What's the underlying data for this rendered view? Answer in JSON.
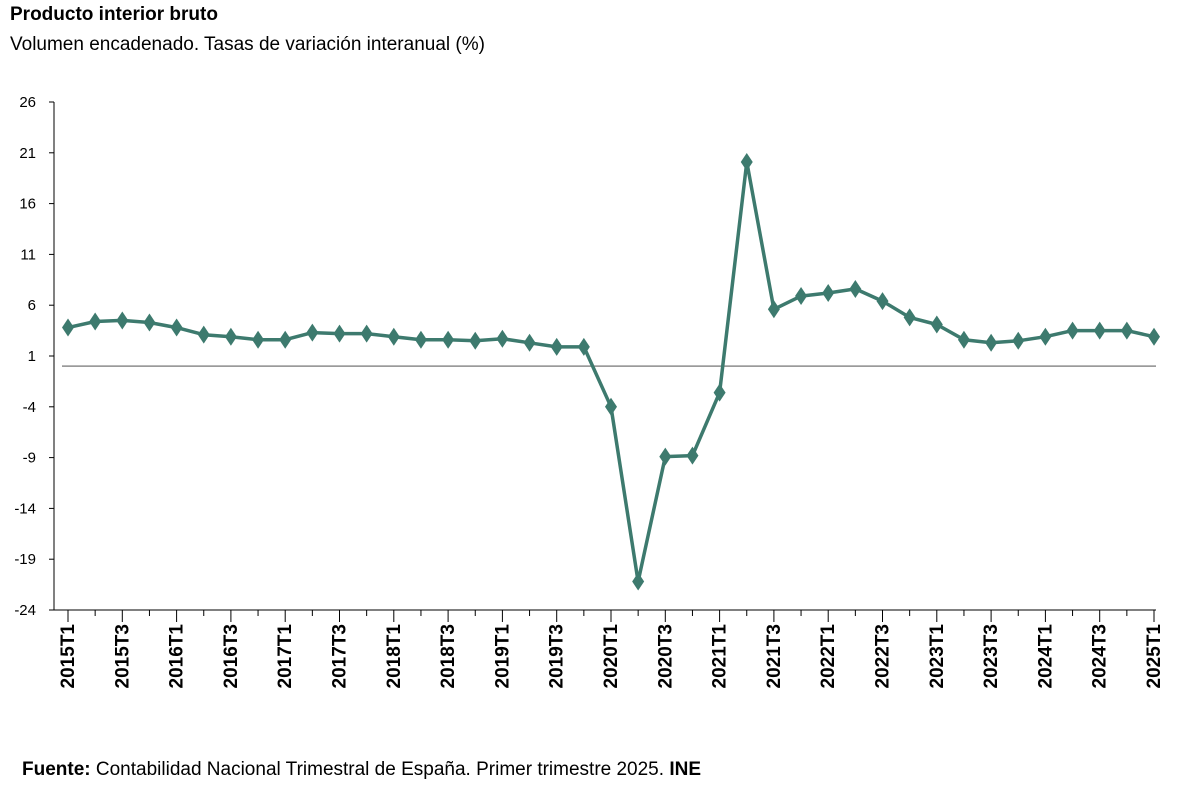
{
  "chart_data": {
    "type": "line",
    "title": "Producto interior bruto",
    "subtitle": "Volumen encadenado. Tasas de variación interanual (%)",
    "xlabel": "",
    "ylabel": "",
    "ylim": [
      -24,
      26
    ],
    "yticks": [
      26,
      21,
      16,
      11,
      6,
      1,
      -4,
      -9,
      -14,
      -19,
      -24
    ],
    "reference_line": 0,
    "x": [
      "2015T1",
      "2015T2",
      "2015T3",
      "2015T4",
      "2016T1",
      "2016T2",
      "2016T3",
      "2016T4",
      "2017T1",
      "2017T2",
      "2017T3",
      "2017T4",
      "2018T1",
      "2018T2",
      "2018T3",
      "2018T4",
      "2019T1",
      "2019T2",
      "2019T3",
      "2019T4",
      "2020T1",
      "2020T2",
      "2020T3",
      "2020T4",
      "2021T1",
      "2021T2",
      "2021T3",
      "2021T4",
      "2022T1",
      "2022T2",
      "2022T3",
      "2022T4",
      "2023T1",
      "2023T2",
      "2023T3",
      "2023T4",
      "2024T1",
      "2024T2",
      "2024T3",
      "2024T4",
      "2025T1"
    ],
    "xtick_labels": [
      "2015T1",
      "2015T3",
      "2016T1",
      "2016T3",
      "2017T1",
      "2017T3",
      "2018T1",
      "2018T3",
      "2019T1",
      "2019T3",
      "2020T1",
      "2020T3",
      "2021T1",
      "2021T3",
      "2022T1",
      "2022T3",
      "2023T1",
      "2023T3",
      "2024T1",
      "2024T3",
      "2025T1"
    ],
    "series": [
      {
        "name": "PIB",
        "color": "#3d7a6e",
        "values": [
          3.8,
          4.4,
          4.5,
          4.3,
          3.8,
          3.1,
          2.9,
          2.6,
          2.6,
          3.3,
          3.2,
          3.2,
          2.9,
          2.6,
          2.6,
          2.5,
          2.7,
          2.3,
          1.9,
          1.9,
          -4.0,
          -21.2,
          -8.9,
          -8.8,
          -2.6,
          20.1,
          5.6,
          6.9,
          7.2,
          7.6,
          6.4,
          4.8,
          4.1,
          2.6,
          2.3,
          2.5,
          2.9,
          3.5,
          3.5,
          3.5,
          2.9
        ]
      }
    ]
  },
  "source": {
    "label": "Fuente:",
    "text": " Contabilidad Nacional Trimestral de España. Primer trimestre 2025. ",
    "org": "INE"
  }
}
